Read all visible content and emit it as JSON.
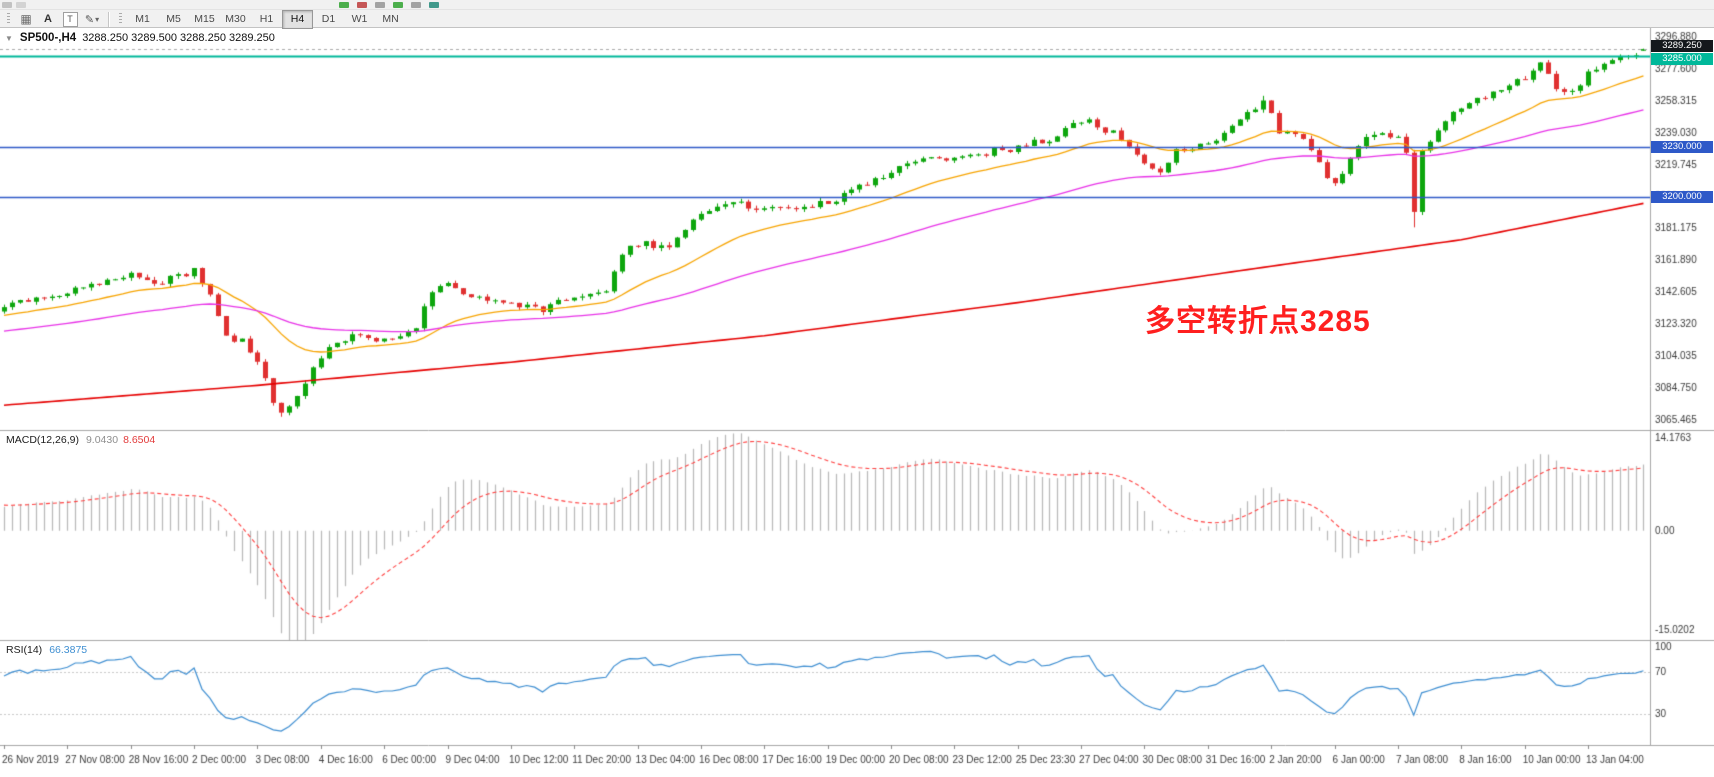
{
  "toolbar": {
    "text_tool": "A",
    "box_tool": "T",
    "timeframes": [
      "M1",
      "M5",
      "M15",
      "M30",
      "H1",
      "H4",
      "D1",
      "W1",
      "MN"
    ],
    "active_timeframe": "H4"
  },
  "icons": {
    "menu_grid": "▦",
    "pencil": "✎",
    "chevron_down": "▾",
    "title_dropdown": "▼"
  },
  "chart": {
    "symbol_period": "SP500-,H4",
    "ohlc": "3288.250 3289.500 3288.250 3289.250",
    "annotation": {
      "text": "多空转折点3285",
      "color": "#ff1f1f"
    }
  },
  "chart_data": {
    "type": "candlestick",
    "symbol": "SP500-",
    "timeframe": "H4",
    "ohlc_display": {
      "open": "3288.250",
      "high": "3289.500",
      "low": "3288.250",
      "close": "3289.250"
    },
    "candle_up": "#0da60d",
    "candle_down": "#e03030",
    "bars": 208,
    "prehistory": 60,
    "gen": {
      "seed": 97,
      "noise": 2.3,
      "wick": 2.0
    },
    "anchors": [
      [
        -60,
        3096
      ],
      [
        -40,
        3108
      ],
      [
        -20,
        3124
      ],
      [
        0,
        3133
      ],
      [
        8,
        3142
      ],
      [
        16,
        3152
      ],
      [
        20,
        3148
      ],
      [
        24,
        3156
      ],
      [
        26,
        3140
      ],
      [
        28,
        3116
      ],
      [
        30,
        3112
      ],
      [
        32,
        3100
      ],
      [
        34,
        3077
      ],
      [
        35,
        3068
      ],
      [
        37,
        3078
      ],
      [
        40,
        3104
      ],
      [
        44,
        3118
      ],
      [
        48,
        3112
      ],
      [
        52,
        3120
      ],
      [
        54,
        3144
      ],
      [
        56,
        3147
      ],
      [
        60,
        3138
      ],
      [
        64,
        3135
      ],
      [
        68,
        3132
      ],
      [
        72,
        3140
      ],
      [
        76,
        3144
      ],
      [
        78,
        3167
      ],
      [
        80,
        3172
      ],
      [
        84,
        3168
      ],
      [
        88,
        3190
      ],
      [
        92,
        3196
      ],
      [
        96,
        3192
      ],
      [
        100,
        3193
      ],
      [
        104,
        3197
      ],
      [
        108,
        3206
      ],
      [
        112,
        3216
      ],
      [
        116,
        3222
      ],
      [
        120,
        3224
      ],
      [
        124,
        3227
      ],
      [
        128,
        3230
      ],
      [
        132,
        3235
      ],
      [
        136,
        3247
      ],
      [
        138,
        3243
      ],
      [
        140,
        3238
      ],
      [
        144,
        3221
      ],
      [
        146,
        3214
      ],
      [
        148,
        3228
      ],
      [
        152,
        3232
      ],
      [
        156,
        3247
      ],
      [
        159,
        3259
      ],
      [
        161,
        3240
      ],
      [
        164,
        3236
      ],
      [
        166,
        3220
      ],
      [
        168,
        3207
      ],
      [
        170,
        3223
      ],
      [
        172,
        3238
      ],
      [
        176,
        3237
      ],
      [
        177,
        3228
      ],
      [
        178,
        3192
      ],
      [
        179,
        3227
      ],
      [
        181,
        3240
      ],
      [
        184,
        3254
      ],
      [
        188,
        3263
      ],
      [
        192,
        3271
      ],
      [
        194,
        3279
      ],
      [
        196,
        3266
      ],
      [
        198,
        3263
      ],
      [
        200,
        3274
      ],
      [
        203,
        3283
      ],
      [
        207,
        3289
      ]
    ],
    "overrides": {
      "35": {
        "low": 3067.0
      },
      "159": {
        "high": 3261.0
      },
      "178": {
        "low": 3181.5
      },
      "207": {
        "open": 3288.25,
        "high": 3289.5,
        "low": 3288.25,
        "close": 3289.25
      }
    },
    "moving_averages": [
      {
        "name": "fast-ma",
        "type": "ema",
        "period": 20,
        "color": "#f7a400"
      },
      {
        "name": "medium-ma",
        "type": "ema",
        "period": 60,
        "color": "#e832e8"
      },
      {
        "name": "slow-ma",
        "type": "anchors",
        "color": "#e60000",
        "points": [
          [
            0,
            3074
          ],
          [
            32,
            3086
          ],
          [
            64,
            3100
          ],
          [
            96,
            3116
          ],
          [
            128,
            3136
          ],
          [
            160,
            3158
          ],
          [
            184,
            3174
          ],
          [
            207,
            3196
          ]
        ]
      }
    ],
    "hlines": [
      {
        "price": 3285.0,
        "color": "#00b89a",
        "width": 2,
        "label": "3285.000"
      },
      {
        "price": 3230.0,
        "color": "#2e59c8",
        "width": 1.4,
        "label": "3230.000"
      },
      {
        "price": 3200.0,
        "color": "#2e59c8",
        "width": 1.4,
        "label": "3200.000"
      }
    ],
    "current_price": {
      "value": 3289.25,
      "label": "3289.250",
      "line_color": "#aaaaaa",
      "box_bg": "#14181c"
    },
    "price_axis": {
      "max": 3302,
      "min": 3059,
      "ticks": [
        "3296.880",
        "3277.600",
        "3258.315",
        "3239.030",
        "3219.745",
        "3200.460",
        "3181.175",
        "3161.890",
        "3142.605",
        "3123.320",
        "3104.035",
        "3084.750",
        "3065.465"
      ]
    },
    "time_axis": [
      "26 Nov 2019",
      "27 Nov 08:00",
      "28 Nov 16:00",
      "2 Dec 00:00",
      "3 Dec 08:00",
      "4 Dec 16:00",
      "6 Dec 00:00",
      "9 Dec 04:00",
      "10 Dec 12:00",
      "11 Dec 20:00",
      "13 Dec 04:00",
      "16 Dec 08:00",
      "17 Dec 16:00",
      "19 Dec 00:00",
      "20 Dec 08:00",
      "23 Dec 12:00",
      "25 Dec 23:30",
      "27 Dec 04:00",
      "30 Dec 08:00",
      "31 Dec 16:00",
      "2 Jan 20:00",
      "6 Jan 00:00",
      "7 Jan 08:00",
      "8 Jan 16:00",
      "10 Jan 00:00",
      "13 Jan 04:00"
    ],
    "macd": {
      "label": "MACD(12,26,9)",
      "fast": 12,
      "slow": 26,
      "signal": 9,
      "main_value": "9.0430",
      "signal_value": "8.6504",
      "axis": [
        "14.1763",
        "0.00",
        "-15.0202"
      ],
      "range": {
        "max": 15.3,
        "min": -16.6
      },
      "hist_color": "#b9b9b9",
      "signal_color": "#ff4040"
    },
    "rsi": {
      "label": "RSI(14)",
      "period": 14,
      "value": "66.3875",
      "levels": [
        70,
        30
      ],
      "axis": [
        "100",
        "70",
        "30"
      ],
      "color": "#3f8fd2",
      "range": {
        "max": 100,
        "min": 0
      }
    }
  }
}
